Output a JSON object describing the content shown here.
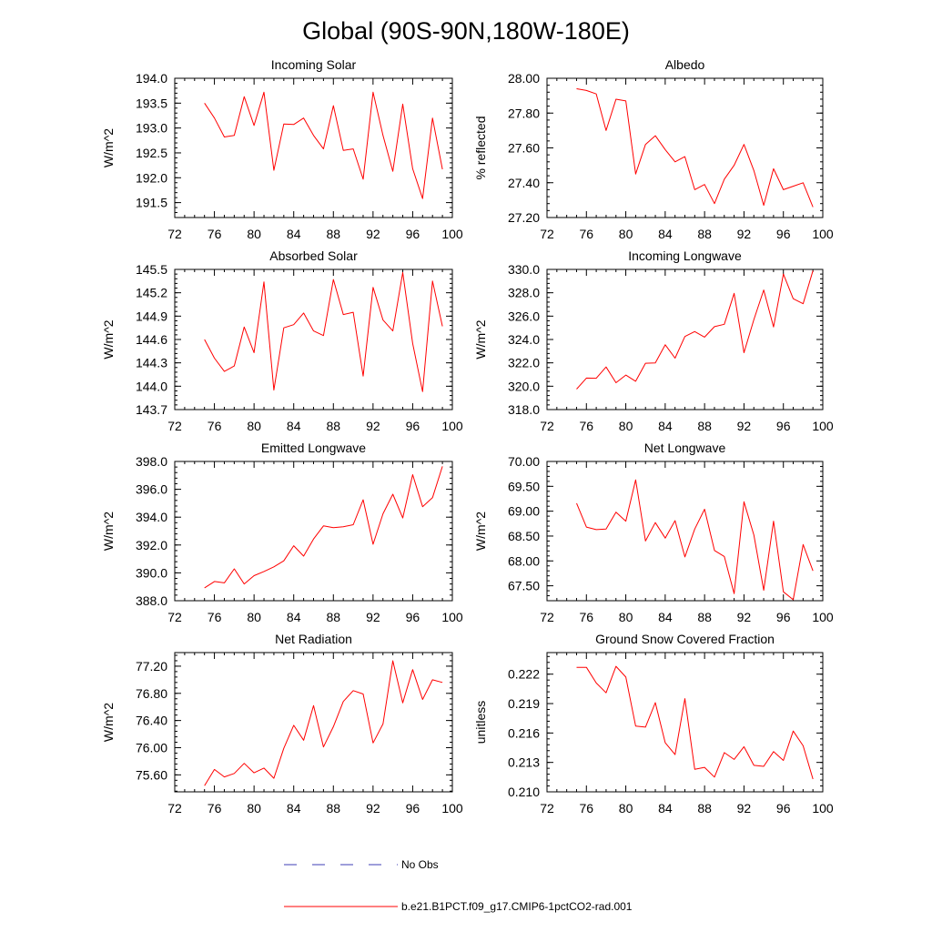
{
  "figure": {
    "title": "Global (90S-90N,180W-180E)"
  },
  "legend": {
    "obs_label": "No Obs",
    "obs_color": "#3c3cb4",
    "model_label": "b.e21.B1PCT.f09_g17.CMIP6-1pctCO2-rad.001",
    "model_color": "#ff0000"
  },
  "chart_data": [
    {
      "type": "line",
      "title": "Incoming Solar",
      "ylabel": "W/m^2",
      "xlim": [
        72,
        100
      ],
      "xticks": [
        "72",
        "76",
        "80",
        "84",
        "88",
        "92",
        "96",
        "100"
      ],
      "ylim": [
        191.2,
        194.0
      ],
      "yticks": [
        "191.5",
        "192.0",
        "192.5",
        "193.0",
        "193.5",
        "194.0"
      ],
      "series": [
        {
          "x": [
            75,
            76,
            77,
            78,
            79,
            80,
            81,
            82,
            83,
            84,
            85,
            86,
            87,
            88,
            89,
            90,
            91,
            92,
            93,
            94,
            95,
            96,
            97,
            98,
            99
          ],
          "values": [
            193.5,
            193.2,
            192.82,
            192.85,
            193.63,
            193.05,
            193.72,
            192.15,
            193.08,
            193.07,
            193.2,
            192.85,
            192.58,
            193.45,
            192.55,
            192.58,
            191.97,
            193.72,
            192.85,
            192.13,
            193.48,
            192.18,
            191.58,
            193.2,
            192.17
          ]
        }
      ]
    },
    {
      "type": "line",
      "title": "Albedo",
      "ylabel": "% reflected",
      "xlim": [
        72,
        100
      ],
      "xticks": [
        "72",
        "76",
        "80",
        "84",
        "88",
        "92",
        "96",
        "100"
      ],
      "ylim": [
        27.2,
        28.0
      ],
      "yticks": [
        "27.20",
        "27.40",
        "27.60",
        "27.80",
        "28.00"
      ],
      "series": [
        {
          "x": [
            75,
            76,
            77,
            78,
            79,
            80,
            81,
            82,
            83,
            84,
            85,
            86,
            87,
            88,
            89,
            90,
            91,
            92,
            93,
            94,
            95,
            96,
            97,
            98,
            99
          ],
          "values": [
            27.94,
            27.93,
            27.91,
            27.7,
            27.88,
            27.87,
            27.45,
            27.62,
            27.67,
            27.59,
            27.52,
            27.55,
            27.36,
            27.39,
            27.28,
            27.42,
            27.5,
            27.62,
            27.47,
            27.27,
            27.48,
            27.36,
            27.38,
            27.4,
            27.26
          ]
        }
      ]
    },
    {
      "type": "line",
      "title": "Absorbed Solar",
      "ylabel": "W/m^2",
      "xlim": [
        72,
        100
      ],
      "xticks": [
        "72",
        "76",
        "80",
        "84",
        "88",
        "92",
        "96",
        "100"
      ],
      "ylim": [
        143.7,
        145.5
      ],
      "yticks": [
        "143.7",
        "144.0",
        "144.3",
        "144.6",
        "144.9",
        "145.2",
        "145.5"
      ],
      "series": [
        {
          "x": [
            75,
            76,
            77,
            78,
            79,
            80,
            81,
            82,
            83,
            84,
            85,
            86,
            87,
            88,
            89,
            90,
            91,
            92,
            93,
            94,
            95,
            96,
            97,
            98,
            99
          ],
          "values": [
            144.6,
            144.36,
            144.19,
            144.26,
            144.76,
            144.43,
            145.34,
            143.95,
            144.75,
            144.79,
            144.94,
            144.71,
            144.65,
            145.37,
            144.92,
            144.95,
            144.13,
            145.27,
            144.85,
            144.71,
            145.46,
            144.55,
            143.93,
            145.35,
            144.77
          ]
        }
      ]
    },
    {
      "type": "line",
      "title": "Incoming Longwave",
      "ylabel": "W/m^2",
      "xlim": [
        72,
        100
      ],
      "xticks": [
        "72",
        "76",
        "80",
        "84",
        "88",
        "92",
        "96",
        "100"
      ],
      "ylim": [
        318.0,
        330.0
      ],
      "yticks": [
        "318.0",
        "320.0",
        "322.0",
        "324.0",
        "326.0",
        "328.0",
        "330.0"
      ],
      "series": [
        {
          "x": [
            75,
            76,
            77,
            78,
            79,
            80,
            81,
            82,
            83,
            84,
            85,
            86,
            87,
            88,
            89,
            90,
            91,
            92,
            93,
            94,
            95,
            96,
            97,
            98,
            99
          ],
          "values": [
            319.75,
            320.7,
            320.68,
            321.65,
            320.3,
            320.95,
            320.42,
            321.97,
            322.0,
            323.55,
            322.4,
            324.26,
            324.68,
            324.2,
            325.1,
            325.3,
            327.95,
            322.87,
            325.71,
            328.24,
            325.07,
            329.6,
            327.49,
            327.06,
            329.9
          ]
        }
      ]
    },
    {
      "type": "line",
      "title": "Emitted Longwave",
      "ylabel": "W/m^2",
      "xlim": [
        72,
        100
      ],
      "xticks": [
        "72",
        "76",
        "80",
        "84",
        "88",
        "92",
        "96",
        "100"
      ],
      "ylim": [
        388.0,
        398.0
      ],
      "yticks": [
        "388.0",
        "390.0",
        "392.0",
        "394.0",
        "396.0",
        "398.0"
      ],
      "series": [
        {
          "x": [
            75,
            76,
            77,
            78,
            79,
            80,
            81,
            82,
            83,
            84,
            85,
            86,
            87,
            88,
            89,
            90,
            91,
            92,
            93,
            94,
            95,
            96,
            97,
            98,
            99
          ],
          "values": [
            388.92,
            389.38,
            389.28,
            390.29,
            389.2,
            389.8,
            390.1,
            390.43,
            390.86,
            391.95,
            391.2,
            392.43,
            393.37,
            393.24,
            393.31,
            393.46,
            395.25,
            392.05,
            394.24,
            395.65,
            393.94,
            397.05,
            394.75,
            395.4,
            397.65
          ]
        }
      ]
    },
    {
      "type": "line",
      "title": "Net Longwave",
      "ylabel": "W/m^2",
      "xlim": [
        72,
        100
      ],
      "xticks": [
        "72",
        "76",
        "80",
        "84",
        "88",
        "92",
        "96",
        "100"
      ],
      "ylim": [
        67.2,
        70.0
      ],
      "yticks": [
        "67.50",
        "68.00",
        "68.50",
        "69.00",
        "69.50",
        "70.00"
      ],
      "series": [
        {
          "x": [
            75,
            76,
            77,
            78,
            79,
            80,
            81,
            82,
            83,
            84,
            85,
            86,
            87,
            88,
            89,
            90,
            91,
            92,
            93,
            94,
            95,
            96,
            97,
            98,
            99
          ],
          "values": [
            69.16,
            68.68,
            68.63,
            68.64,
            68.98,
            68.8,
            69.63,
            68.4,
            68.77,
            68.46,
            68.81,
            68.08,
            68.64,
            69.04,
            68.21,
            68.09,
            67.34,
            69.19,
            68.52,
            67.41,
            68.8,
            67.38,
            67.22,
            68.33,
            67.8
          ]
        }
      ]
    },
    {
      "type": "line",
      "title": "Net Radiation",
      "ylabel": "W/m^2",
      "xlim": [
        72,
        100
      ],
      "xticks": [
        "72",
        "76",
        "80",
        "84",
        "88",
        "92",
        "96",
        "100"
      ],
      "ylim": [
        75.35,
        77.4
      ],
      "yticks": [
        "75.60",
        "76.00",
        "76.40",
        "76.80",
        "77.20"
      ],
      "series": [
        {
          "x": [
            75,
            76,
            77,
            78,
            79,
            80,
            81,
            82,
            83,
            84,
            85,
            86,
            87,
            88,
            89,
            90,
            91,
            92,
            93,
            94,
            95,
            96,
            97,
            98,
            99
          ],
          "values": [
            75.44,
            75.68,
            75.57,
            75.62,
            75.77,
            75.63,
            75.7,
            75.55,
            75.99,
            76.33,
            76.11,
            76.62,
            76.01,
            76.31,
            76.68,
            76.84,
            76.79,
            76.07,
            76.35,
            77.28,
            76.66,
            77.15,
            76.71,
            77.0,
            76.96
          ]
        }
      ]
    },
    {
      "type": "line",
      "title": "Ground Snow Covered Fraction",
      "ylabel": "unitless",
      "xlim": [
        72,
        100
      ],
      "xticks": [
        "72",
        "76",
        "80",
        "84",
        "88",
        "92",
        "96",
        "100"
      ],
      "ylim": [
        0.21,
        0.2242
      ],
      "yticks": [
        "0.210",
        "0.213",
        "0.216",
        "0.219",
        "0.222"
      ],
      "series": [
        {
          "x": [
            75,
            76,
            77,
            78,
            79,
            80,
            81,
            82,
            83,
            84,
            85,
            86,
            87,
            88,
            89,
            90,
            91,
            92,
            93,
            94,
            95,
            96,
            97,
            98,
            99
          ],
          "values": [
            0.2227,
            0.2227,
            0.2211,
            0.2201,
            0.2228,
            0.2217,
            0.2167,
            0.2166,
            0.2191,
            0.215,
            0.2138,
            0.2195,
            0.2123,
            0.2125,
            0.2115,
            0.214,
            0.2133,
            0.2146,
            0.2127,
            0.2126,
            0.2141,
            0.2132,
            0.2162,
            0.2147,
            0.2113
          ]
        }
      ]
    }
  ]
}
